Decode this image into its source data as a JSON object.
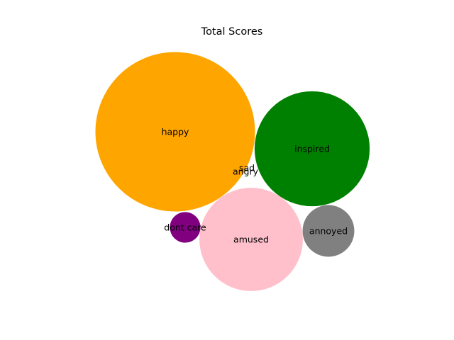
{
  "chart_data": {
    "type": "bubble",
    "title": "Total Scores",
    "xlabel": "",
    "ylabel": "",
    "axes_visible": false,
    "grid": false,
    "legend": "none",
    "points": [
      {
        "label": "happy",
        "score": 100,
        "color": "#ffa500"
      },
      {
        "label": "inspired",
        "score": 52,
        "color": "#008000"
      },
      {
        "label": "amused",
        "score": 42,
        "color": "#ffc0cb"
      },
      {
        "label": "annoyed",
        "score": 10.5,
        "color": "#808080"
      },
      {
        "label": "dont care",
        "score": 3.7,
        "color": "#800080"
      },
      {
        "label": "sad",
        "score": 0,
        "color": "#0000ff"
      },
      {
        "label": "angry",
        "score": 0,
        "color": "#ff0000"
      }
    ]
  }
}
